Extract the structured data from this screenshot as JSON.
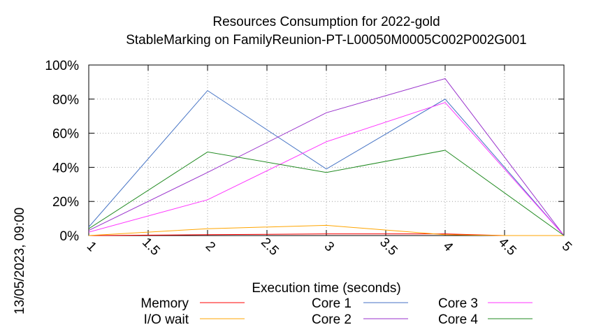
{
  "chart_data": {
    "type": "line",
    "title": "Resources Consumption for 2022-gold",
    "subtitle": "StableMarking on FamilyReunion-PT-L00050M0005C002P002G001",
    "xlabel": "Execution time (seconds)",
    "ylabel": "",
    "timestamp": "13/05/2023, 09:00",
    "xlim": [
      1,
      5
    ],
    "ylim": [
      0,
      100
    ],
    "x_ticks": [
      "1",
      "1.5",
      "2",
      "2.5",
      "3",
      "3.5",
      "4",
      "4.5",
      "5"
    ],
    "y_ticks": [
      "0%",
      "20%",
      "40%",
      "60%",
      "80%",
      "100%"
    ],
    "grid": true,
    "legend_position": "bottom",
    "series": [
      {
        "name": "Memory",
        "color": "#ff0000",
        "x": [
          1,
          2,
          3,
          4,
          4.5,
          5
        ],
        "y": [
          0,
          0.5,
          1,
          1,
          0,
          0
        ]
      },
      {
        "name": "I/O wait",
        "color": "#ffa500",
        "x": [
          1,
          2,
          3,
          4,
          4.5,
          5
        ],
        "y": [
          0,
          4,
          6,
          0.5,
          0,
          0
        ]
      },
      {
        "name": "Core 1",
        "color": "#4472c4",
        "x": [
          1,
          2,
          3,
          4,
          5
        ],
        "y": [
          5,
          85,
          39,
          80,
          0
        ]
      },
      {
        "name": "Core 2",
        "color": "#9932cc",
        "x": [
          1,
          2,
          3,
          4,
          5
        ],
        "y": [
          3,
          37,
          72,
          92,
          0
        ]
      },
      {
        "name": "Core 3",
        "color": "#ff33ff",
        "x": [
          1,
          2,
          3,
          4,
          5
        ],
        "y": [
          2,
          21,
          55,
          78,
          0
        ]
      },
      {
        "name": "Core 4",
        "color": "#228b22",
        "x": [
          1,
          2,
          3,
          4,
          5
        ],
        "y": [
          4,
          49,
          37,
          50,
          0
        ]
      }
    ]
  }
}
